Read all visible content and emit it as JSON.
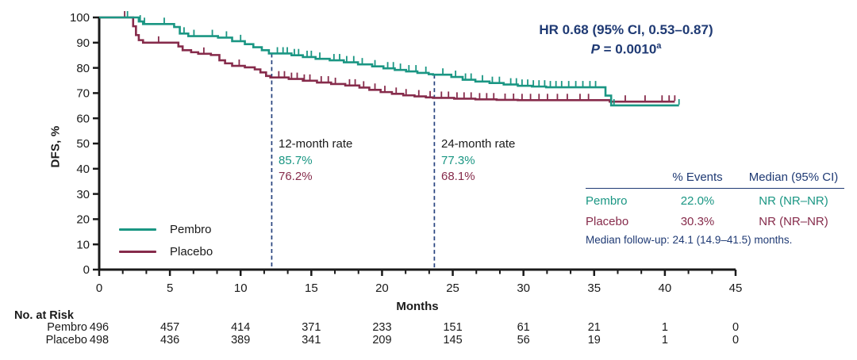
{
  "colors": {
    "teal": "#1A9683",
    "maroon": "#862B4B",
    "navy": "#1F3A74",
    "dash": "#26427E",
    "axis": "#1A1A1A",
    "background": "#FFFFFF"
  },
  "chart_data": {
    "type": "line",
    "subtype": "kaplan-meier-step",
    "title": "",
    "xlabel": "Months",
    "ylabel": "DFS, %",
    "xlim": [
      0,
      45
    ],
    "ylim": [
      0,
      100
    ],
    "x_ticks": [
      0,
      5,
      10,
      15,
      20,
      25,
      30,
      35,
      40,
      45
    ],
    "x_minor_divisions_per_interval": 3,
    "y_ticks": [
      0,
      10,
      20,
      30,
      40,
      50,
      60,
      70,
      80,
      90,
      100
    ],
    "grid": "off",
    "legend_position": "lower-left",
    "series": [
      {
        "name": "Pembro",
        "color": "#1A9683",
        "steps": [
          [
            0,
            100
          ],
          [
            2.8,
            98.4
          ],
          [
            3.1,
            97.4
          ],
          [
            5.3,
            96.2
          ],
          [
            5.7,
            93.6
          ],
          [
            6.3,
            92.6
          ],
          [
            8.4,
            92.0
          ],
          [
            9.4,
            90.6
          ],
          [
            10.3,
            89.4
          ],
          [
            10.9,
            88.2
          ],
          [
            11.5,
            87.0
          ],
          [
            12.0,
            85.7
          ],
          [
            13.6,
            85.0
          ],
          [
            14.4,
            84.3
          ],
          [
            15.3,
            83.6
          ],
          [
            16.3,
            83.0
          ],
          [
            17.3,
            82.2
          ],
          [
            18.3,
            81.4
          ],
          [
            19.3,
            80.6
          ],
          [
            20.1,
            79.8
          ],
          [
            20.9,
            79.2
          ],
          [
            21.7,
            78.6
          ],
          [
            22.5,
            78.0
          ],
          [
            23.3,
            77.5
          ],
          [
            23.6,
            77.3
          ],
          [
            24.9,
            76.4
          ],
          [
            25.7,
            75.3
          ],
          [
            26.6,
            74.6
          ],
          [
            27.6,
            74.0
          ],
          [
            28.6,
            73.4
          ],
          [
            29.6,
            72.9
          ],
          [
            30.6,
            72.6
          ],
          [
            31.6,
            72.3
          ],
          [
            35.8,
            69.0
          ],
          [
            36.2,
            65.1
          ]
        ],
        "end_time": 41.0,
        "censor_ticks": [
          2.0,
          2.9,
          3.2,
          4.6,
          6.0,
          6.7,
          8.0,
          9.0,
          10.0,
          12.6,
          13.0,
          13.3,
          13.8,
          14.1,
          14.7,
          15.0,
          15.6,
          16.6,
          17.0,
          17.5,
          18.0,
          18.6,
          19.5,
          20.4,
          20.8,
          21.3,
          21.9,
          22.4,
          23.1,
          24.3,
          25.2,
          25.9,
          26.3,
          27.1,
          27.8,
          28.3,
          29.1,
          29.5,
          29.9,
          30.3,
          30.7,
          31.1,
          31.5,
          31.9,
          32.3,
          32.7,
          33.2,
          33.7,
          34.2,
          34.7,
          35.1,
          36.4,
          41.0
        ],
        "rate_12_month": "85.7%",
        "rate_24_month": "77.3%"
      },
      {
        "name": "Placebo",
        "color": "#862B4B",
        "steps": [
          [
            0,
            100
          ],
          [
            2.4,
            96.5
          ],
          [
            2.6,
            93.0
          ],
          [
            2.8,
            91.0
          ],
          [
            3.1,
            90.0
          ],
          [
            5.6,
            88.5
          ],
          [
            5.9,
            87.0
          ],
          [
            6.5,
            86.2
          ],
          [
            7.0,
            85.6
          ],
          [
            7.9,
            85.1
          ],
          [
            8.5,
            83.0
          ],
          [
            8.9,
            81.8
          ],
          [
            9.4,
            80.8
          ],
          [
            10.3,
            80.2
          ],
          [
            11.0,
            79.4
          ],
          [
            11.4,
            78.2
          ],
          [
            11.8,
            76.8
          ],
          [
            12.1,
            76.2
          ],
          [
            13.4,
            75.6
          ],
          [
            14.4,
            74.9
          ],
          [
            15.4,
            74.2
          ],
          [
            16.4,
            73.6
          ],
          [
            17.4,
            73.0
          ],
          [
            18.4,
            72.2
          ],
          [
            19.1,
            71.3
          ],
          [
            19.9,
            70.4
          ],
          [
            20.7,
            69.7
          ],
          [
            21.5,
            69.1
          ],
          [
            22.3,
            68.7
          ],
          [
            23.1,
            68.3
          ],
          [
            23.6,
            68.1
          ],
          [
            25.1,
            67.8
          ],
          [
            26.6,
            67.5
          ],
          [
            28.1,
            67.3
          ],
          [
            29.6,
            67.2
          ],
          [
            36.1,
            66.6
          ]
        ],
        "end_time": 40.7,
        "censor_ticks": [
          1.8,
          4.2,
          7.4,
          9.9,
          12.7,
          13.1,
          13.6,
          14.0,
          14.5,
          14.9,
          15.7,
          16.2,
          16.7,
          17.7,
          18.1,
          18.7,
          19.5,
          20.2,
          21.0,
          21.7,
          22.6,
          23.4,
          24.2,
          24.7,
          25.3,
          25.8,
          26.3,
          26.9,
          27.4,
          27.9,
          28.7,
          29.3,
          29.9,
          30.5,
          31.1,
          31.7,
          32.4,
          33.1,
          34.0,
          34.6,
          37.2,
          38.6,
          39.8,
          40.3,
          40.7
        ],
        "rate_12_month": "76.2%",
        "rate_24_month": "68.1%"
      }
    ],
    "dashed_lines": [
      {
        "x": 12.2,
        "top_pct": 85.7
      },
      {
        "x": 23.7,
        "top_pct": 77.3
      }
    ]
  },
  "annotations": {
    "hr_line": "HR 0.68 (95% CI, 0.53–0.87)",
    "p_label": "P",
    "p_rest": " = 0.0010",
    "p_sup": "a",
    "rate_12": {
      "title": "12-month rate",
      "pembro": "85.7%",
      "placebo": "76.2%"
    },
    "rate_24": {
      "title": "24-month rate",
      "pembro": "77.3%",
      "placebo": "68.1%"
    }
  },
  "legend": {
    "items": [
      {
        "label": "Pembro",
        "color": "#1A9683"
      },
      {
        "label": "Placebo",
        "color": "#862B4B"
      }
    ]
  },
  "stats_table": {
    "headers": [
      "% Events",
      "Median (95% CI)"
    ],
    "rows": [
      {
        "name": "Pembro",
        "events": "22.0%",
        "median": "NR (NR–NR)"
      },
      {
        "name": "Placebo",
        "events": "30.3%",
        "median": "NR (NR–NR)"
      }
    ],
    "footnote": "Median follow-up: 24.1 (14.9–41.5) months."
  },
  "risk_table": {
    "title": "No. at Risk",
    "months": [
      0,
      5,
      10,
      15,
      20,
      25,
      30,
      35,
      40,
      45
    ],
    "rows": [
      {
        "name": "Pembro",
        "values": [
          "496",
          "457",
          "414",
          "371",
          "233",
          "151",
          "61",
          "21",
          "1",
          "0"
        ]
      },
      {
        "name": "Placebo",
        "values": [
          "498",
          "436",
          "389",
          "341",
          "209",
          "145",
          "56",
          "19",
          "1",
          "0"
        ]
      }
    ]
  }
}
